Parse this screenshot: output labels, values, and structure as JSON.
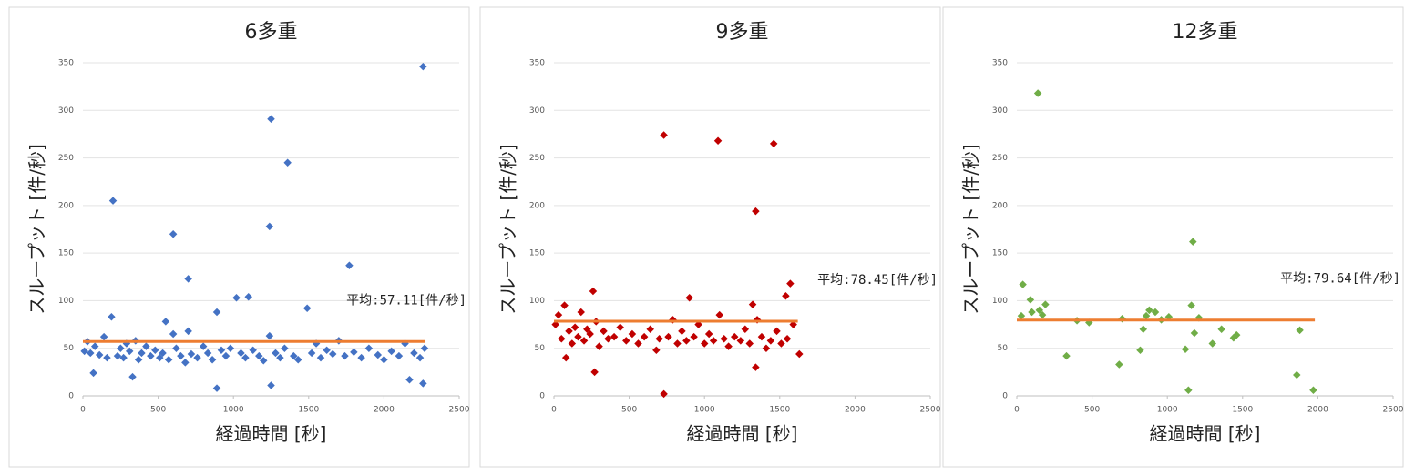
{
  "chart_data": [
    {
      "type": "scatter",
      "title": "6多重",
      "x_label": "経過時間 [秒]",
      "y_label": "スループット [件/秒]",
      "color": "#4472c4",
      "x": [
        10,
        30,
        50,
        80,
        110,
        140,
        160,
        230,
        250,
        270,
        290,
        310,
        350,
        370,
        390,
        420,
        450,
        480,
        510,
        530,
        570,
        620,
        650,
        680,
        720,
        760,
        800,
        830,
        860,
        920,
        950,
        980,
        1050,
        1080,
        1130,
        1170,
        1200,
        1280,
        1310,
        1340,
        1400,
        1430,
        1520,
        1550,
        1580,
        1620,
        1660,
        1700,
        1740,
        1800,
        1850,
        1900,
        1960,
        2000,
        2050,
        2100,
        2140,
        2200,
        2240,
        2270,
        200,
        600,
        700,
        890,
        1020,
        1100,
        1240,
        1250,
        1360,
        1490,
        1770,
        2260,
        890,
        1250,
        2260,
        2170,
        330,
        70,
        550,
        600,
        700,
        190,
        1240
      ],
      "y": [
        47,
        57,
        45,
        52,
        43,
        62,
        40,
        42,
        50,
        40,
        55,
        47,
        58,
        38,
        45,
        52,
        42,
        48,
        40,
        45,
        38,
        50,
        42,
        35,
        44,
        40,
        52,
        45,
        38,
        48,
        42,
        50,
        45,
        40,
        48,
        42,
        37,
        45,
        40,
        50,
        42,
        38,
        45,
        55,
        40,
        48,
        44,
        58,
        42,
        46,
        40,
        50,
        43,
        38,
        47,
        42,
        55,
        45,
        40,
        50,
        205,
        170,
        123,
        88,
        103,
        104,
        178,
        291,
        245,
        92,
        137,
        346,
        8,
        11,
        13,
        17,
        20,
        24,
        78,
        65,
        68,
        83,
        63
      ],
      "mean_line": {
        "value": 57.11,
        "label": "平均:57.11[件/秒]",
        "color": "#ed7d31",
        "x": [
          0,
          2270
        ]
      },
      "xlim": [
        0,
        2500
      ],
      "xticks": [
        0,
        500,
        1000,
        1500,
        2000,
        2500
      ],
      "ylim": [
        0,
        350
      ],
      "yticks": [
        0,
        50,
        100,
        150,
        200,
        250,
        300,
        350
      ],
      "grid": true
    },
    {
      "type": "scatter",
      "title": "9多重",
      "x_label": "経過時間 [秒]",
      "y_label": "スループット [件/秒]",
      "color": "#c00000",
      "x": [
        10,
        30,
        50,
        70,
        100,
        120,
        140,
        160,
        180,
        200,
        220,
        240,
        280,
        300,
        330,
        360,
        400,
        440,
        480,
        520,
        560,
        600,
        640,
        680,
        700,
        760,
        790,
        820,
        850,
        880,
        930,
        960,
        1000,
        1030,
        1060,
        1100,
        1130,
        1160,
        1200,
        1240,
        1270,
        1300,
        1350,
        1380,
        1410,
        1440,
        1480,
        1510,
        1550,
        1590,
        730,
        1090,
        1460,
        1340,
        1570,
        1540,
        260,
        900,
        1320,
        1340,
        270,
        730,
        1630,
        80
      ],
      "y": [
        75,
        85,
        60,
        95,
        68,
        55,
        72,
        62,
        88,
        58,
        70,
        65,
        78,
        52,
        68,
        60,
        62,
        72,
        58,
        65,
        55,
        62,
        70,
        48,
        60,
        62,
        80,
        55,
        68,
        58,
        62,
        75,
        55,
        65,
        58,
        85,
        60,
        52,
        62,
        58,
        70,
        55,
        80,
        62,
        50,
        58,
        68,
        55,
        60,
        75,
        274,
        268,
        265,
        194,
        118,
        105,
        110,
        103,
        96,
        30,
        25,
        2,
        44,
        40
      ],
      "mean_line": {
        "value": 78.45,
        "label": "平均:78.45[件/秒]",
        "color": "#ed7d31",
        "x": [
          0,
          1620
        ]
      },
      "xlim": [
        0,
        2500
      ],
      "xticks": [
        0,
        500,
        1000,
        1500,
        2000,
        2500
      ],
      "ylim": [
        0,
        350
      ],
      "yticks": [
        0,
        50,
        100,
        150,
        200,
        250,
        300,
        350
      ],
      "grid": true
    },
    {
      "type": "scatter",
      "title": "12多重",
      "x_label": "経過時間 [秒]",
      "y_label": "スループット [件/秒]",
      "color": "#70ad47",
      "x": [
        40,
        30,
        90,
        100,
        140,
        150,
        170,
        190,
        330,
        400,
        480,
        680,
        700,
        820,
        840,
        860,
        880,
        920,
        960,
        1010,
        1120,
        1140,
        1160,
        1170,
        1180,
        1210,
        1300,
        1360,
        1440,
        1460,
        1860,
        1880,
        1970
      ],
      "y": [
        117,
        84,
        101,
        88,
        318,
        90,
        85,
        96,
        42,
        79,
        77,
        33,
        81,
        48,
        70,
        84,
        90,
        88,
        80,
        83,
        49,
        6,
        95,
        162,
        66,
        82,
        55,
        70,
        61,
        64,
        22,
        69,
        6
      ],
      "mean_line": {
        "value": 79.64,
        "label": "平均:79.64[件/秒]",
        "color": "#ed7d31",
        "x": [
          0,
          1980
        ]
      },
      "xlim": [
        0,
        2500
      ],
      "xticks": [
        0,
        500,
        1000,
        1500,
        2000,
        2500
      ],
      "ylim": [
        0,
        350
      ],
      "yticks": [
        0,
        50,
        100,
        150,
        200,
        250,
        300,
        350
      ],
      "grid": true
    }
  ]
}
